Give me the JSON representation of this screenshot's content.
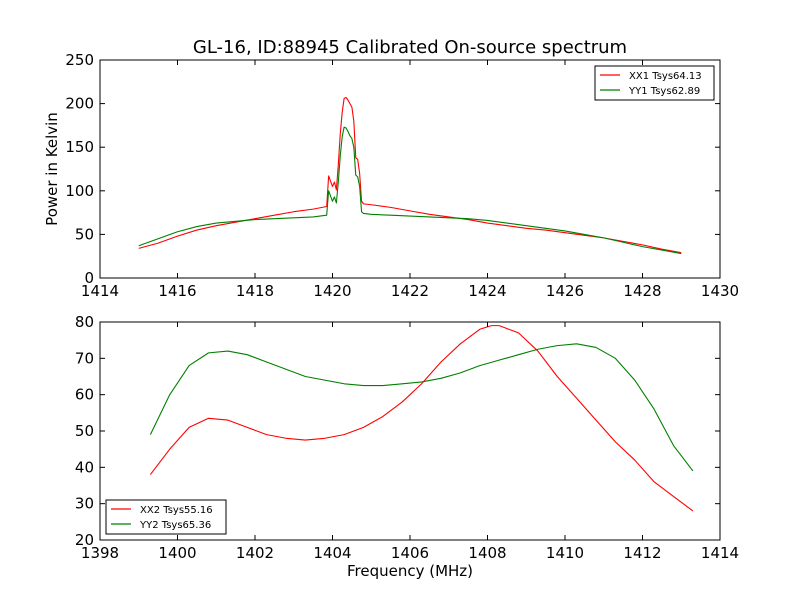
{
  "figure": {
    "title": "GL-16, ID:88945 Calibrated On-source spectrum",
    "xlabel": "Frequency (MHz)"
  },
  "colors": {
    "red": "#ff0000",
    "green": "#008000"
  },
  "chart_data": [
    {
      "type": "line",
      "title": "GL-16, ID:88945 Calibrated On-source spectrum",
      "xlabel": "",
      "ylabel": "Power in Kelvin",
      "xlim": [
        1414,
        1430
      ],
      "ylim": [
        0,
        250
      ],
      "xticks": [
        1414,
        1416,
        1418,
        1420,
        1422,
        1424,
        1426,
        1428,
        1430
      ],
      "yticks": [
        0,
        50,
        100,
        150,
        200,
        250
      ],
      "grid": false,
      "legend_position": "top-right",
      "series": [
        {
          "name": "XX1 Tsys64.13",
          "color": "#ff0000",
          "x": [
            1415.0,
            1415.5,
            1416.0,
            1416.5,
            1417.0,
            1417.5,
            1418.0,
            1418.5,
            1419.0,
            1419.5,
            1419.85,
            1419.9,
            1420.0,
            1420.05,
            1420.1,
            1420.15,
            1420.2,
            1420.25,
            1420.3,
            1420.35,
            1420.4,
            1420.45,
            1420.5,
            1420.55,
            1420.6,
            1420.65,
            1420.7,
            1420.75,
            1420.8,
            1421.0,
            1421.5,
            1422.0,
            1422.5,
            1423.0,
            1423.5,
            1424.0,
            1424.5,
            1425.0,
            1425.5,
            1426.0,
            1426.5,
            1427.0,
            1427.5,
            1428.0,
            1428.5,
            1429.0
          ],
          "y": [
            34,
            40,
            48,
            55,
            60,
            64,
            68,
            72,
            76,
            79,
            82,
            117,
            105,
            110,
            101,
            130,
            165,
            190,
            206,
            207,
            204,
            200,
            196,
            180,
            138,
            136,
            120,
            88,
            85,
            84,
            81,
            77,
            73,
            70,
            67,
            63,
            60,
            57,
            55,
            52,
            49,
            46,
            42,
            38,
            33,
            29
          ]
        },
        {
          "name": "YY1 Tsys62.89",
          "color": "#008000",
          "x": [
            1415.0,
            1415.5,
            1416.0,
            1416.5,
            1417.0,
            1417.5,
            1418.0,
            1418.5,
            1419.0,
            1419.5,
            1419.85,
            1419.9,
            1420.0,
            1420.05,
            1420.1,
            1420.15,
            1420.2,
            1420.25,
            1420.3,
            1420.35,
            1420.4,
            1420.45,
            1420.5,
            1420.55,
            1420.6,
            1420.65,
            1420.7,
            1420.75,
            1420.8,
            1421.0,
            1421.5,
            1422.0,
            1422.5,
            1423.0,
            1423.5,
            1424.0,
            1424.5,
            1425.0,
            1425.5,
            1426.0,
            1426.5,
            1427.0,
            1427.5,
            1428.0,
            1428.5,
            1429.0
          ],
          "y": [
            37,
            45,
            53,
            59,
            63,
            65,
            67,
            68,
            69,
            70,
            72,
            100,
            88,
            93,
            86,
            110,
            140,
            162,
            173,
            172,
            168,
            163,
            160,
            150,
            118,
            116,
            105,
            76,
            74,
            73,
            72,
            71,
            70,
            69,
            68,
            66,
            63,
            60,
            57,
            54,
            50,
            46,
            41,
            36,
            32,
            28
          ]
        }
      ]
    },
    {
      "type": "line",
      "title": "",
      "xlabel": "Frequency (MHz)",
      "ylabel": "",
      "xlim": [
        1398,
        1414
      ],
      "ylim": [
        20,
        80
      ],
      "xticks": [
        1398,
        1400,
        1402,
        1404,
        1406,
        1408,
        1410,
        1412,
        1414
      ],
      "yticks": [
        20,
        30,
        40,
        50,
        60,
        70,
        80
      ],
      "grid": false,
      "legend_position": "bottom-left",
      "series": [
        {
          "name": "XX2 Tsys55.16",
          "color": "#ff0000",
          "x": [
            1399.3,
            1399.8,
            1400.3,
            1400.8,
            1401.3,
            1401.8,
            1402.3,
            1402.8,
            1403.3,
            1403.8,
            1404.3,
            1404.8,
            1405.3,
            1405.8,
            1406.3,
            1406.8,
            1407.3,
            1407.8,
            1408.1,
            1408.3,
            1408.8,
            1409.3,
            1409.8,
            1410.3,
            1410.8,
            1411.3,
            1411.8,
            1412.3,
            1412.8,
            1413.3
          ],
          "y": [
            38,
            45,
            51,
            53.5,
            53,
            51,
            49,
            48,
            47.5,
            48,
            49,
            51,
            54,
            58,
            63,
            69,
            74,
            78,
            79,
            79,
            77,
            72,
            65,
            59,
            53,
            47,
            42,
            36,
            32,
            28
          ]
        },
        {
          "name": "YY2 Tsys65.36",
          "color": "#008000",
          "x": [
            1399.3,
            1399.8,
            1400.3,
            1400.8,
            1401.3,
            1401.8,
            1402.3,
            1402.8,
            1403.3,
            1403.8,
            1404.3,
            1404.8,
            1405.3,
            1405.8,
            1406.3,
            1406.8,
            1407.3,
            1407.8,
            1408.3,
            1408.8,
            1409.3,
            1409.8,
            1410.3,
            1410.8,
            1411.3,
            1411.8,
            1412.3,
            1412.8,
            1413.3
          ],
          "y": [
            49,
            60,
            68,
            71.5,
            72,
            71,
            69,
            67,
            65,
            64,
            63,
            62.5,
            62.5,
            63,
            63.5,
            64.5,
            66,
            68,
            69.5,
            71,
            72.5,
            73.5,
            74,
            73,
            70,
            64,
            56,
            46,
            39
          ]
        }
      ]
    }
  ]
}
